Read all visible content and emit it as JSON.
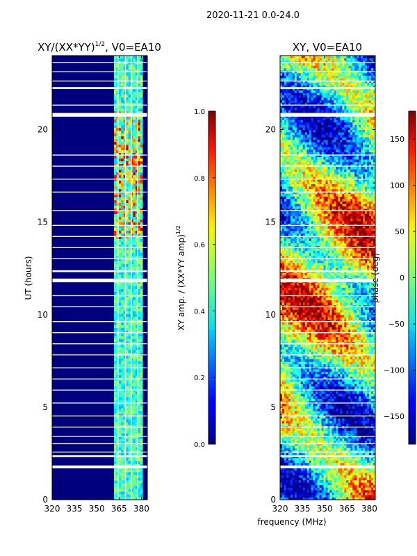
{
  "suptitle": "2020-11-21 0.0-24.0",
  "chart_data": [
    {
      "type": "heatmap",
      "title": "XY/(XX*YY)^{1/2}, V0=EA10",
      "title_main": "XY/(XX*YY)",
      "title_exp": "1/2",
      "title_tail": ", V0=EA10",
      "xlabel": "",
      "ylabel": "UT (hours)",
      "xlim": [
        320,
        384
      ],
      "ylim": [
        0,
        24
      ],
      "xticks": [
        320,
        335,
        350,
        365,
        380
      ],
      "yticks": [
        0,
        5,
        10,
        15,
        20
      ],
      "colormap": "jet",
      "background_value_color": "#00007f",
      "bright_band_mhz": [
        361,
        380
      ],
      "colorbar": {
        "label": "XY amp. / (XX*YY amp)^{1/2}",
        "label_main": "XY amp. / (XX*YY amp)",
        "label_exp": "1/2",
        "range": [
          0.0,
          1.0
        ],
        "ticks": [
          "0.0",
          "0.2",
          "0.4",
          "0.6",
          "0.8",
          "1.0"
        ],
        "tick_values": [
          0.0,
          0.2,
          0.4,
          0.6,
          0.8,
          1.0
        ]
      }
    },
    {
      "type": "heatmap",
      "title": "XY, V0=EA10",
      "xlabel": "frequency (MHz)",
      "ylabel": "",
      "xlim": [
        320,
        384
      ],
      "ylim": [
        0,
        24
      ],
      "xticks": [
        320,
        335,
        350,
        365,
        380
      ],
      "yticks": [
        0,
        5,
        10,
        15,
        20
      ],
      "colormap": "jet",
      "colorbar": {
        "label": "phase (deg)",
        "range": [
          -180,
          180
        ],
        "ticks": [
          "−150",
          "−100",
          "−50",
          "0",
          "50",
          "100",
          "150"
        ],
        "tick_values": [
          -150,
          -100,
          -50,
          0,
          50,
          100,
          150
        ]
      }
    }
  ],
  "flag_gaps_hours": [
    [
      1.7,
      1.85
    ],
    [
      2.3,
      2.4
    ],
    [
      2.55,
      2.6
    ],
    [
      3.0,
      3.05
    ],
    [
      3.4,
      3.45
    ],
    [
      3.9,
      3.95
    ],
    [
      4.5,
      4.55
    ],
    [
      5.2,
      5.25
    ],
    [
      5.9,
      5.95
    ],
    [
      6.5,
      6.55
    ],
    [
      7.1,
      7.15
    ],
    [
      7.8,
      7.85
    ],
    [
      8.4,
      8.45
    ],
    [
      9.0,
      9.05
    ],
    [
      9.6,
      9.65
    ],
    [
      10.4,
      10.45
    ],
    [
      11.0,
      11.05
    ],
    [
      11.75,
      11.95
    ],
    [
      12.3,
      12.4
    ],
    [
      13.0,
      13.05
    ],
    [
      13.6,
      13.65
    ],
    [
      14.2,
      14.25
    ],
    [
      14.8,
      14.85
    ],
    [
      15.6,
      15.65
    ],
    [
      16.6,
      16.65
    ],
    [
      17.3,
      17.35
    ],
    [
      18.0,
      18.05
    ],
    [
      18.6,
      18.65
    ],
    [
      20.7,
      20.9
    ],
    [
      21.3,
      21.35
    ],
    [
      22.2,
      22.3
    ],
    [
      22.6,
      22.65
    ],
    [
      23.1,
      23.15
    ],
    [
      23.6,
      23.65
    ]
  ]
}
